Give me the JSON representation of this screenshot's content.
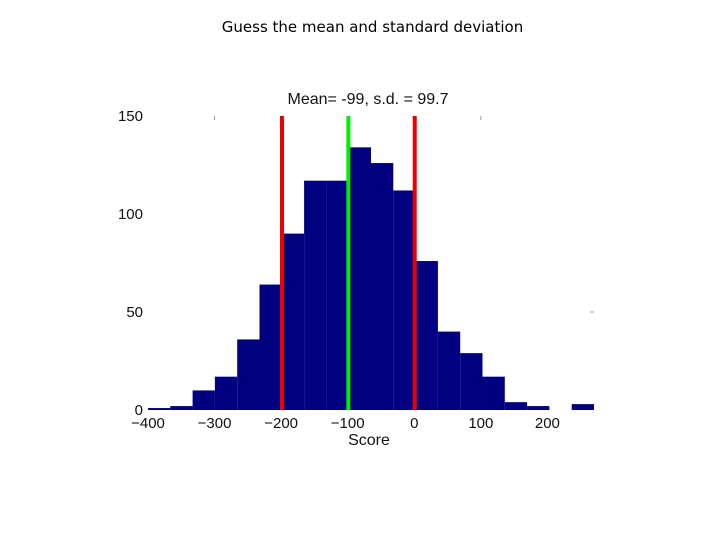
{
  "slide": {
    "title": "Guess the mean and standard deviation"
  },
  "chart_data": {
    "type": "bar",
    "title": "Mean= -99, s.d. = 99.7",
    "xlabel": "Score",
    "ylabel": "",
    "xlim": [
      -400,
      270
    ],
    "ylim": [
      0,
      150
    ],
    "xticks": [
      "-400",
      "-300",
      "-200",
      "-100",
      "0",
      "100",
      "200"
    ],
    "xtick_values": [
      -400,
      -300,
      -200,
      -100,
      0,
      100,
      200
    ],
    "yticks": [
      "0",
      "50",
      "100",
      "150"
    ],
    "ytick_values": [
      0,
      50,
      100,
      150
    ],
    "bin_width": 33.5,
    "bin_edges": [
      -400,
      -366.5,
      -333,
      -299.5,
      -266,
      -232.5,
      -199,
      -165.5,
      -132,
      -98.5,
      -65,
      -31.5,
      2,
      35.5,
      69,
      102.5,
      136,
      169.5,
      203,
      236.5,
      270
    ],
    "values": [
      1,
      2,
      10,
      17,
      36,
      64,
      90,
      117,
      117,
      134,
      126,
      112,
      76,
      40,
      29,
      17,
      4,
      2,
      0,
      3
    ],
    "bar_color": "#000080",
    "mean_line": {
      "x": -99,
      "color": "#00ee00"
    },
    "sd_lines": [
      {
        "x": -198.7,
        "color": "#ee0000"
      },
      {
        "x": 0.7,
        "color": "#ee0000"
      }
    ],
    "grid": false
  }
}
